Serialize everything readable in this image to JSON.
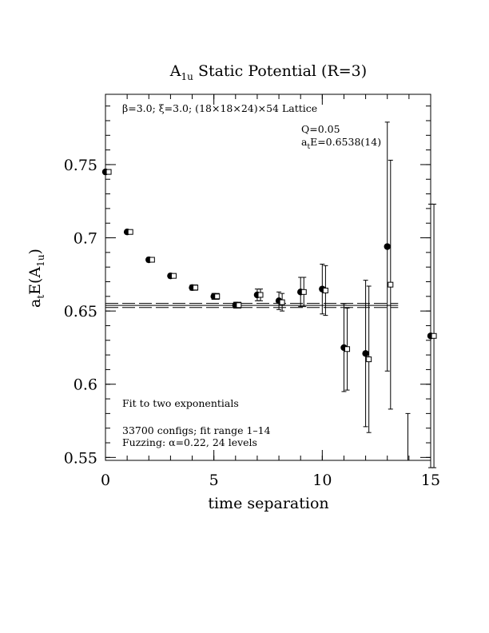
{
  "chart_data": {
    "type": "scatter",
    "title": "A1u Static Potential (R=3)",
    "title_parts": {
      "base": "A",
      "sub": "1u",
      "rest": " Static Potential (R=3)"
    },
    "xlabel": "time separation",
    "ylabel_parts": {
      "a": "a",
      "t": "t",
      "e": "E(A",
      "sub": "1u",
      "close": ")"
    },
    "xlim": [
      0,
      15
    ],
    "ylim": [
      0.548,
      0.798
    ],
    "x_ticks": [
      0,
      5,
      10,
      15
    ],
    "x_tick_labels": [
      "0",
      "5",
      "10",
      "15"
    ],
    "y_ticks": [
      0.55,
      0.6,
      0.65,
      0.7,
      0.75
    ],
    "y_tick_labels": [
      "0.55",
      "0.6",
      "0.65",
      "0.7",
      "0.75"
    ],
    "x_minor_step": 1,
    "y_minor_step": 0.01,
    "annotations": {
      "lattice": "β=3.0; ξ=3.0; (18×18×24)×54 Lattice",
      "q": "Q=0.05",
      "energy_prefix": "a",
      "energy_sub": "t",
      "energy_rest": "E=0.6538(14)",
      "fit": "Fit to two exponentials",
      "configs": "33700 configs; fit range 1–14",
      "fuzzing": "Fuzzing: α=0.22, 24 levels"
    },
    "fit": {
      "value": 0.6538,
      "error": 0.0014,
      "x_range": [
        0,
        13.5
      ]
    },
    "series": [
      {
        "name": "",
        "marker": "filled-circle",
        "x": [
          0,
          1,
          2,
          3,
          4,
          5,
          6,
          7,
          8,
          9,
          10,
          11,
          12,
          13,
          15
        ],
        "y": [
          0.745,
          0.704,
          0.685,
          0.674,
          0.666,
          0.66,
          0.654,
          0.661,
          0.657,
          0.663,
          0.665,
          0.625,
          0.621,
          0.694,
          0.633
        ],
        "err": [
          0.0012,
          0.0012,
          0.0015,
          0.0015,
          0.0018,
          0.002,
          0.002,
          0.004,
          0.006,
          0.01,
          0.017,
          0.03,
          0.05,
          0.085,
          0.09
        ]
      },
      {
        "name": "",
        "marker": "open-square",
        "x": [
          0.15,
          1.15,
          2.15,
          3.15,
          4.15,
          5.15,
          6.15,
          7.15,
          8.15,
          9.15,
          10.15,
          11.15,
          12.15,
          13.15,
          15.15
        ],
        "y": [
          0.745,
          0.704,
          0.685,
          0.674,
          0.666,
          0.66,
          0.654,
          0.661,
          0.656,
          0.663,
          0.664,
          0.624,
          0.617,
          0.668,
          0.633
        ],
        "err": [
          0.0012,
          0.0012,
          0.0015,
          0.0015,
          0.0018,
          0.002,
          0.002,
          0.004,
          0.006,
          0.01,
          0.017,
          0.028,
          0.05,
          0.085,
          0.09
        ]
      }
    ],
    "extra_error_bars": [
      {
        "x": 13.95,
        "lo": 0.541,
        "hi": 0.58
      }
    ]
  }
}
